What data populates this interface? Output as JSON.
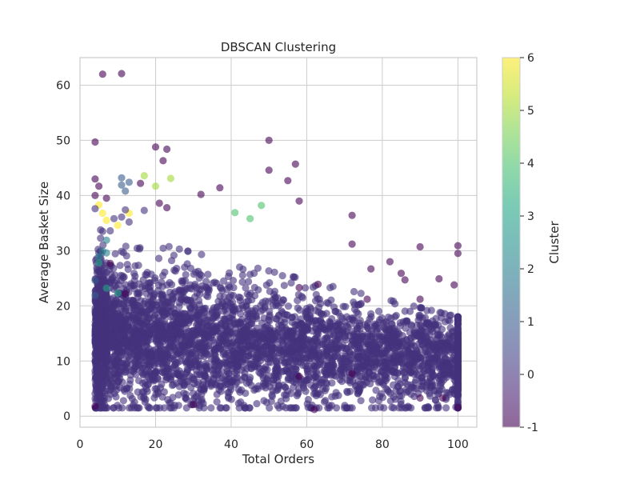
{
  "chart_data": {
    "type": "scatter",
    "title": "DBSCAN Clustering",
    "xlabel": "Total Orders",
    "ylabel": "Average Basket Size",
    "xlim": [
      0,
      105
    ],
    "ylim": [
      -2,
      65
    ],
    "xticks": [
      0,
      20,
      40,
      60,
      80,
      100
    ],
    "yticks": [
      0,
      10,
      20,
      30,
      40,
      50,
      60
    ],
    "grid": true,
    "colorbar": {
      "label": "Cluster",
      "min": -1,
      "max": 6,
      "ticks": [
        -1,
        0,
        1,
        2,
        3,
        4,
        5,
        6
      ],
      "colormap": "viridis"
    },
    "dense_region": {
      "cluster": 0,
      "x_range": [
        4,
        100
      ],
      "y_range": [
        1.5,
        34
      ],
      "note": "Thousands of overlapping points for cluster 0"
    },
    "points": [
      {
        "x": 6,
        "y": 62,
        "c": -1
      },
      {
        "x": 4,
        "y": 49.7,
        "c": -1
      },
      {
        "x": 20,
        "y": 48.8,
        "c": -1
      },
      {
        "x": 23,
        "y": 48.4,
        "c": -1
      },
      {
        "x": 50,
        "y": 50,
        "c": -1
      },
      {
        "x": 22,
        "y": 46.3,
        "c": -1
      },
      {
        "x": 57,
        "y": 45.7,
        "c": -1
      },
      {
        "x": 50,
        "y": 44.6,
        "c": -1
      },
      {
        "x": 4,
        "y": 43,
        "c": -1
      },
      {
        "x": 55,
        "y": 42.7,
        "c": -1
      },
      {
        "x": 37,
        "y": 41.4,
        "c": -1
      },
      {
        "x": 32,
        "y": 40.2,
        "c": -1
      },
      {
        "x": 72,
        "y": 36.4,
        "c": -1
      },
      {
        "x": 90,
        "y": 30.7,
        "c": -1
      },
      {
        "x": 100,
        "y": 30.9,
        "c": -1
      },
      {
        "x": 100,
        "y": 29.5,
        "c": -1
      },
      {
        "x": 58,
        "y": 39,
        "c": -1
      },
      {
        "x": 16,
        "y": 42.2,
        "c": -1
      },
      {
        "x": 4,
        "y": 40,
        "c": -1
      },
      {
        "x": 5,
        "y": 41.7,
        "c": -1
      },
      {
        "x": 11,
        "y": 62.1,
        "c": -1
      },
      {
        "x": 7,
        "y": 39.5,
        "c": -1
      },
      {
        "x": 21,
        "y": 38.6,
        "c": -1
      },
      {
        "x": 23,
        "y": 37.8,
        "c": -1
      },
      {
        "x": 11,
        "y": 43.2,
        "c": 1
      },
      {
        "x": 13,
        "y": 42.4,
        "c": 1
      },
      {
        "x": 11,
        "y": 41.9,
        "c": 1
      },
      {
        "x": 12,
        "y": 40.8,
        "c": 1
      },
      {
        "x": 17,
        "y": 43.6,
        "c": 5
      },
      {
        "x": 24,
        "y": 43.1,
        "c": 5
      },
      {
        "x": 20,
        "y": 41.7,
        "c": 5
      },
      {
        "x": 48,
        "y": 38.2,
        "c": 4
      },
      {
        "x": 41,
        "y": 36.9,
        "c": 4
      },
      {
        "x": 45,
        "y": 35.8,
        "c": 4
      },
      {
        "x": 5,
        "y": 38.3,
        "c": 6
      },
      {
        "x": 6,
        "y": 36.8,
        "c": 6
      },
      {
        "x": 13,
        "y": 36.8,
        "c": 6
      },
      {
        "x": 7,
        "y": 35.5,
        "c": 6
      },
      {
        "x": 10,
        "y": 34.6,
        "c": 6
      },
      {
        "x": 4,
        "y": 37.6,
        "c": 0
      },
      {
        "x": 12,
        "y": 37.4,
        "c": 0
      },
      {
        "x": 17,
        "y": 37.3,
        "c": 0
      },
      {
        "x": 9,
        "y": 35.8,
        "c": 0
      },
      {
        "x": 11,
        "y": 36.1,
        "c": 0
      },
      {
        "x": 13,
        "y": 35.2,
        "c": 0
      },
      {
        "x": 8,
        "y": 33.6,
        "c": 0
      },
      {
        "x": 6,
        "y": 33.5,
        "c": 0
      },
      {
        "x": 7,
        "y": 31.9,
        "c": 2
      },
      {
        "x": 6,
        "y": 29.9,
        "c": 2
      },
      {
        "x": 7,
        "y": 29.6,
        "c": 2
      },
      {
        "x": 5,
        "y": 28.9,
        "c": 2
      },
      {
        "x": 7,
        "y": 23.2,
        "c": 3
      },
      {
        "x": 10,
        "y": 22.3,
        "c": 3
      },
      {
        "x": 5,
        "y": 27.8,
        "c": 3
      },
      {
        "x": 4,
        "y": 24.6,
        "c": 1
      },
      {
        "x": 4,
        "y": 21.9,
        "c": 1
      },
      {
        "x": 12,
        "y": 22.2,
        "c": -1
      },
      {
        "x": 8,
        "y": 27.7,
        "c": -1
      },
      {
        "x": 63,
        "y": 23.9,
        "c": -1
      },
      {
        "x": 58,
        "y": 23.3,
        "c": -1
      },
      {
        "x": 76,
        "y": 21.2,
        "c": -1
      },
      {
        "x": 85,
        "y": 25.9,
        "c": -1
      },
      {
        "x": 86,
        "y": 24.7,
        "c": -1
      },
      {
        "x": 95,
        "y": 24.9,
        "c": -1
      },
      {
        "x": 99,
        "y": 23.8,
        "c": -1
      },
      {
        "x": 72,
        "y": 31.2,
        "c": -1
      },
      {
        "x": 82,
        "y": 28,
        "c": -1
      },
      {
        "x": 77,
        "y": 26.7,
        "c": -1
      },
      {
        "x": 90,
        "y": 21.2,
        "c": -1
      },
      {
        "x": 72,
        "y": 7.7,
        "c": -1
      },
      {
        "x": 90,
        "y": 3.3,
        "c": -1
      },
      {
        "x": 96,
        "y": 3.3,
        "c": -1
      },
      {
        "x": 100,
        "y": 1.6,
        "c": -1
      },
      {
        "x": 62,
        "y": 1.2,
        "c": -1
      },
      {
        "x": 58,
        "y": 7.2,
        "c": -1
      },
      {
        "x": 30,
        "y": 2.1,
        "c": -1
      },
      {
        "x": 4,
        "y": 1.8,
        "c": -1
      }
    ]
  }
}
